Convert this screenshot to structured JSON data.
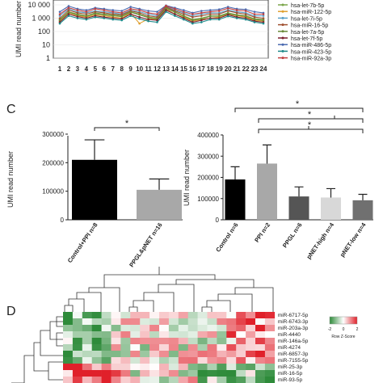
{
  "figure": {
    "panels": {
      "top": {
        "ylabel": "UMI read number",
        "y_ticks": [
          "1",
          "10",
          "100",
          "1 000",
          "10 000"
        ],
        "x_ticks": [
          "1",
          "2",
          "3",
          "4",
          "5",
          "6",
          "7",
          "8",
          "9",
          "10",
          "11",
          "12",
          "13",
          "14",
          "15",
          "16",
          "17",
          "18",
          "19",
          "20",
          "21",
          "22",
          "23",
          "24"
        ],
        "legend": [
          {
            "name": "hsa-let-7b-5p",
            "color": "#7aa64a"
          },
          {
            "name": "hsa-miR-122-5p",
            "color": "#e0a030"
          },
          {
            "name": "hsa-let-7i-5p",
            "color": "#5aa0c8"
          },
          {
            "name": "hsa-miR-16-5p",
            "color": "#a05030"
          },
          {
            "name": "hsa-let-7a-5p",
            "color": "#6a8a3a"
          },
          {
            "name": "hsa-let-7f-5p",
            "color": "#7a1e2e"
          },
          {
            "name": "hsa-miR-486-5p",
            "color": "#4a6ab0"
          },
          {
            "name": "hsa-miR-423-5p",
            "color": "#1e8a8a"
          },
          {
            "name": "hsa-miR-92a-3p",
            "color": "#c04040"
          }
        ]
      },
      "C": {
        "label": "C",
        "left_chart": {
          "ylabel": "UMI read number",
          "y_ticks": [
            "0",
            "100000",
            "200000",
            "300000"
          ],
          "significance": "*"
        },
        "right_chart": {
          "ylabel": "UMI read number",
          "y_ticks": [
            "0",
            "100000",
            "200000",
            "300000",
            "400000"
          ],
          "significance": [
            "*",
            "*",
            "*"
          ]
        }
      },
      "D": {
        "label": "D",
        "legend_title": "Row Z-Score",
        "legend_ticks": [
          "-2",
          "0",
          "2"
        ],
        "rows": [
          "miR-6717-5p",
          "miR-6743-3p",
          "miR-203a-3p",
          "miR-4440",
          "miR-146a-5p",
          "miR-4274",
          "miR-6857-3p",
          "miR-7155-5p",
          "miR-25-3p",
          "miR-16-5p",
          "miR-93-5p"
        ]
      }
    }
  },
  "chart_data": [
    {
      "type": "line",
      "xlabel": "",
      "ylabel": "UMI read number",
      "yscale": "log",
      "ylim": [
        1,
        10000
      ],
      "x": [
        1,
        2,
        3,
        4,
        5,
        6,
        7,
        8,
        9,
        10,
        11,
        12,
        13,
        14,
        15,
        16,
        17,
        18,
        19,
        20,
        21,
        22,
        23,
        24
      ],
      "series": [
        {
          "name": "hsa-let-7b-5p",
          "values": [
            800,
            3000,
            2000,
            1500,
            2500,
            2000,
            1800,
            1500,
            3000,
            2000,
            1200,
            1000,
            6000,
            3000,
            1500,
            800,
            1000,
            1500,
            1500,
            2500,
            1800,
            1500,
            900,
            800
          ]
        },
        {
          "name": "hsa-miR-122-5p",
          "values": [
            600,
            2500,
            1500,
            1200,
            1800,
            1500,
            1200,
            1000,
            2500,
            400,
            900,
            800,
            5000,
            2000,
            1200,
            600,
            800,
            1000,
            1200,
            2000,
            1500,
            1200,
            700,
            600
          ]
        },
        {
          "name": "hsa-let-7i-5p",
          "values": [
            1500,
            5000,
            3000,
            2500,
            3500,
            3000,
            2500,
            2000,
            4000,
            3000,
            2000,
            1500,
            8000,
            4000,
            2500,
            1500,
            2000,
            2500,
            2500,
            4000,
            3000,
            2500,
            1500,
            1500
          ]
        },
        {
          "name": "hsa-miR-16-5p",
          "values": [
            1000,
            4000,
            2500,
            2000,
            3000,
            2500,
            2000,
            1800,
            3500,
            2500,
            1500,
            1200,
            7000,
            3500,
            2000,
            1200,
            1500,
            2000,
            2000,
            3500,
            2500,
            2000,
            1200,
            1000
          ]
        },
        {
          "name": "hsa-let-7a-5p",
          "values": [
            700,
            2800,
            1800,
            1400,
            2200,
            1800,
            1500,
            1300,
            2800,
            1800,
            1100,
            900,
            5500,
            2800,
            1400,
            700,
            900,
            1400,
            1400,
            2200,
            1700,
            1400,
            800,
            700
          ]
        },
        {
          "name": "hsa-let-7f-5p",
          "values": [
            500,
            2000,
            1300,
            1000,
            1500,
            1200,
            1000,
            900,
            2000,
            1200,
            800,
            700,
            4000,
            2000,
            1000,
            500,
            700,
            1000,
            1000,
            1800,
            1200,
            1000,
            600,
            500
          ]
        },
        {
          "name": "hsa-miR-486-5p",
          "values": [
            3000,
            8000,
            5000,
            4000,
            6000,
            5000,
            4000,
            3500,
            7000,
            5000,
            3500,
            3000,
            9000,
            6000,
            4000,
            2500,
            3500,
            4000,
            4500,
            7000,
            5000,
            4500,
            3000,
            2500
          ]
        },
        {
          "name": "hsa-miR-423-5p",
          "values": [
            400,
            1500,
            1000,
            800,
            1200,
            1000,
            800,
            700,
            1500,
            900,
            600,
            500,
            3000,
            1500,
            800,
            400,
            500,
            800,
            800,
            1400,
            1000,
            800,
            500,
            400
          ]
        },
        {
          "name": "hsa-miR-92a-3p",
          "values": [
            2000,
            6000,
            4000,
            3000,
            5000,
            4000,
            3000,
            2500,
            5000,
            4000,
            2500,
            2000,
            8500,
            5000,
            3000,
            2000,
            2500,
            3000,
            3500,
            5500,
            4000,
            3500,
            2000,
            2000
          ]
        }
      ]
    },
    {
      "type": "bar",
      "ylabel": "UMI read number",
      "ylim": [
        0,
        300000
      ],
      "categories": [
        "Control+PPI n=8",
        "PPGL&pNET n=16"
      ],
      "values": [
        210000,
        105000
      ],
      "error": [
        70000,
        38000
      ],
      "colors": [
        "#000000",
        "#a8a8a8"
      ]
    },
    {
      "type": "bar",
      "ylabel": "UMI read number",
      "ylim": [
        0,
        400000
      ],
      "categories": [
        "Control n=6",
        "PPI n=2",
        "PPGL n=6",
        "pNET-high n=4",
        "pNET-low n=4"
      ],
      "values": [
        190000,
        265000,
        110000,
        105000,
        92000
      ],
      "error": [
        60000,
        88000,
        45000,
        42000,
        28000
      ],
      "colors": [
        "#000000",
        "#a8a8a8",
        "#555555",
        "#d8d8d8",
        "#707070"
      ]
    },
    {
      "type": "heatmap",
      "rows": [
        "miR-6717-5p",
        "miR-6743-3p",
        "miR-203a-3p",
        "miR-4440",
        "miR-146a-5p",
        "miR-4274",
        "miR-6857-3p",
        "miR-7155-5p",
        "miR-25-3p",
        "miR-16-5p",
        "miR-93-5p"
      ],
      "legend_title": "Row Z-Score",
      "scale": [
        -2,
        2
      ]
    }
  ]
}
